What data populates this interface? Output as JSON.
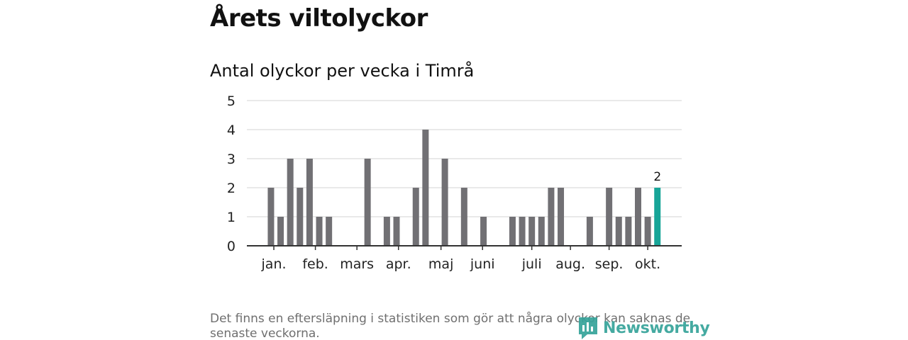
{
  "header": {
    "title": "Årets viltolyckor"
  },
  "chart_data": {
    "type": "bar",
    "title": "Antal olyckor per vecka i Timrå",
    "xlabel": "",
    "ylabel": "",
    "ylim": [
      0,
      5
    ],
    "yticks": [
      "0",
      "1",
      "2",
      "3",
      "4",
      "5"
    ],
    "weeks": [
      1,
      2,
      3,
      4,
      5,
      6,
      7,
      8,
      9,
      10,
      11,
      12,
      13,
      14,
      15,
      16,
      17,
      18,
      19,
      20,
      21,
      22,
      23,
      24,
      25,
      26,
      27,
      28,
      29,
      30,
      31,
      32,
      33,
      34,
      35,
      36,
      37,
      38,
      39,
      40,
      41,
      42,
      43
    ],
    "values": [
      0,
      0,
      2,
      1,
      3,
      2,
      3,
      1,
      1,
      0,
      0,
      0,
      3,
      0,
      1,
      1,
      0,
      2,
      4,
      0,
      3,
      0,
      2,
      0,
      1,
      0,
      0,
      1,
      1,
      1,
      1,
      2,
      2,
      0,
      0,
      1,
      0,
      2,
      1,
      1,
      2,
      1,
      2
    ],
    "x_tick_labels": [
      {
        "label": "jan.",
        "week": 3.3
      },
      {
        "label": "feb.",
        "week": 7.6
      },
      {
        "label": "mars",
        "week": 11.9
      },
      {
        "label": "apr.",
        "week": 16.2
      },
      {
        "label": "maj",
        "week": 20.6
      },
      {
        "label": "juni",
        "week": 24.9
      },
      {
        "label": "juli",
        "week": 30
      },
      {
        "label": "aug.",
        "week": 34
      },
      {
        "label": "sep.",
        "week": 38
      },
      {
        "label": "okt.",
        "week": 42
      }
    ],
    "highlight": {
      "week": 43,
      "label": "2"
    },
    "colors": {
      "bar": "#717074",
      "highlight": "#17a598",
      "grid": "#dcdcdc",
      "axis": "#333333"
    }
  },
  "footer": {
    "note": "Det finns en eftersläpning i statistiken som gör att några olyckor kan saknas de senaste veckorna.",
    "logo_text": "Newsworthy",
    "logo_icon": "newsworthy-chart-icon"
  }
}
